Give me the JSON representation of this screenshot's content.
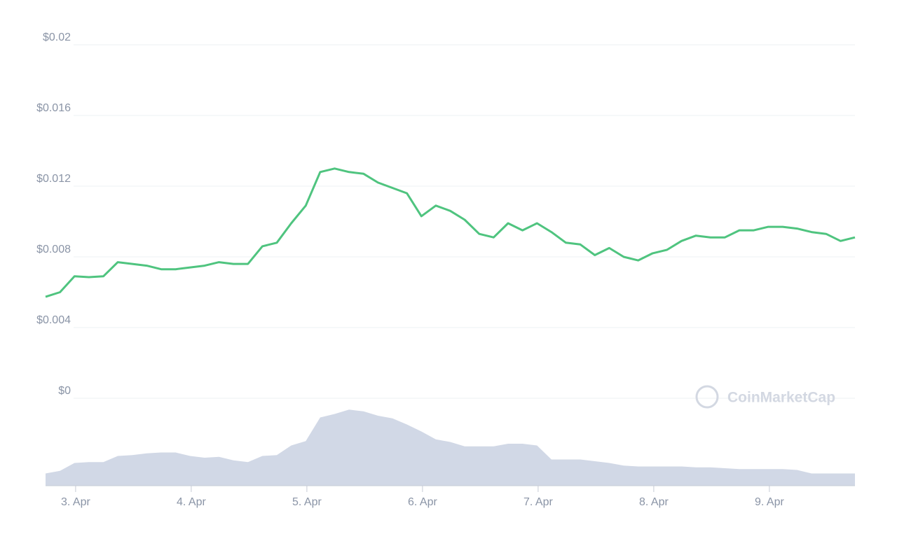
{
  "chart_data": {
    "type": "line",
    "watermark": "CoinMarketCap",
    "xlim": [
      0,
      56
    ],
    "xticks": [
      {
        "value": 2.08,
        "label": "3. Apr"
      },
      {
        "value": 10.08,
        "label": "4. Apr"
      },
      {
        "value": 18.08,
        "label": "5. Apr"
      },
      {
        "value": 26.08,
        "label": "6. Apr"
      },
      {
        "value": 34.08,
        "label": "7. Apr"
      },
      {
        "value": 42.08,
        "label": "8. Apr"
      },
      {
        "value": 50.08,
        "label": "9. Apr"
      }
    ],
    "ylim": [
      0,
      0.02
    ],
    "yticks": [
      {
        "value": 0,
        "label": "$0"
      },
      {
        "value": 0.004,
        "label": "$0.004"
      },
      {
        "value": 0.008,
        "label": "$0.008"
      },
      {
        "value": 0.012,
        "label": "$0.012"
      },
      {
        "value": 0.016,
        "label": "$0.016"
      },
      {
        "value": 0.02,
        "label": "$0.02"
      }
    ],
    "y2lim": [
      0,
      100
    ],
    "grid": true,
    "series": [
      {
        "color": "#4fc47f",
        "values": [
          0.00574,
          0.006,
          0.0069,
          0.00685,
          0.0069,
          0.0077,
          0.0076,
          0.0075,
          0.0073,
          0.0073,
          0.0074,
          0.0075,
          0.0077,
          0.0076,
          0.0076,
          0.0086,
          0.0088,
          0.0099,
          0.0109,
          0.0128,
          0.013,
          0.0128,
          0.0127,
          0.0122,
          0.0119,
          0.0116,
          0.0103,
          0.0109,
          0.0106,
          0.0101,
          0.0093,
          0.0091,
          0.0099,
          0.0095,
          0.0099,
          0.0094,
          0.0088,
          0.0087,
          0.0081,
          0.0085,
          0.008,
          0.0078,
          0.0082,
          0.0084,
          0.0089,
          0.0092,
          0.0091,
          0.0091,
          0.0095,
          0.0095,
          0.0097,
          0.0097,
          0.0096,
          0.0094,
          0.0093,
          0.0089,
          0.0091
        ]
      },
      {
        "color": "#d1d8e6",
        "axis": "y2",
        "values": [
          14,
          17,
          26,
          27,
          27,
          34,
          35,
          37,
          38,
          38,
          34,
          32,
          33,
          29,
          27,
          34,
          35,
          46,
          51,
          78,
          82,
          87,
          85,
          80,
          77,
          70,
          62,
          53,
          50,
          45,
          45,
          45,
          48,
          48,
          46,
          30,
          30,
          30,
          28,
          26,
          23,
          22,
          22,
          22,
          22,
          21,
          21,
          20,
          19,
          19,
          19,
          19,
          18,
          14,
          14,
          14,
          14
        ]
      }
    ]
  }
}
